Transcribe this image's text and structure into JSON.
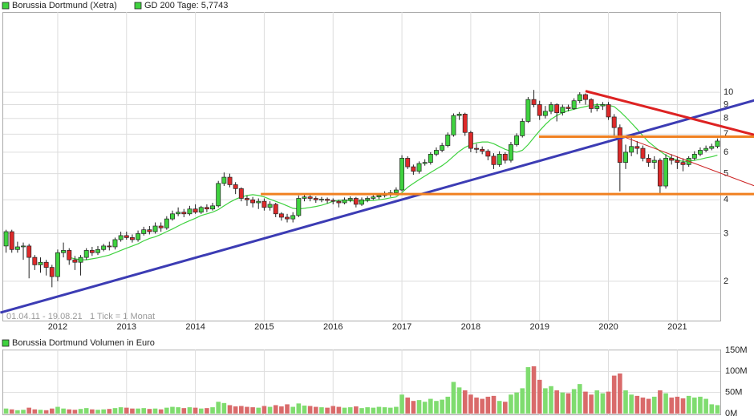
{
  "chart_data": [
    {
      "type": "candlestick",
      "name": "Borussia Dortmund (Xetra)",
      "date_range": "01.04.11 - 19.08.21",
      "tick_note": "1 Tick = 1 Monat",
      "categories": [
        null,
        null,
        null,
        null,
        null,
        null,
        null,
        null,
        null,
        "2012",
        null,
        null,
        null,
        null,
        null,
        null,
        null,
        null,
        null,
        null,
        null,
        "2013",
        null,
        null,
        null,
        null,
        null,
        null,
        null,
        null,
        null,
        null,
        null,
        "2014",
        null,
        null,
        null,
        null,
        null,
        null,
        null,
        null,
        null,
        null,
        null,
        "2015",
        null,
        null,
        null,
        null,
        null,
        null,
        null,
        null,
        null,
        null,
        null,
        "2016",
        null,
        null,
        null,
        null,
        null,
        null,
        null,
        null,
        null,
        null,
        null,
        "2017",
        null,
        null,
        null,
        null,
        null,
        null,
        null,
        null,
        null,
        null,
        null,
        "2018",
        null,
        null,
        null,
        null,
        null,
        null,
        null,
        null,
        null,
        null,
        null,
        "2019",
        null,
        null,
        null,
        null,
        null,
        null,
        null,
        null,
        null,
        null,
        null,
        "2020",
        null,
        null,
        null,
        null,
        null,
        null,
        null,
        null,
        null,
        null,
        null,
        "2021",
        null,
        null,
        null,
        null,
        null,
        null,
        null
      ],
      "open": [
        2.7,
        3.05,
        2.62,
        2.68,
        2.7,
        2.45,
        2.3,
        2.35,
        2.25,
        2.08,
        2.55,
        2.6,
        2.4,
        2.35,
        2.45,
        2.6,
        2.55,
        2.62,
        2.7,
        2.68,
        2.85,
        2.95,
        2.9,
        2.85,
        3.0,
        3.1,
        3.05,
        3.2,
        3.15,
        3.4,
        3.55,
        3.6,
        3.55,
        3.7,
        3.6,
        3.75,
        3.7,
        3.8,
        4.6,
        4.85,
        4.55,
        4.4,
        4.05,
        4.0,
        3.9,
        3.95,
        3.75,
        3.85,
        3.55,
        3.45,
        3.4,
        3.5,
        4.05,
        4.1,
        4.05,
        4.0,
        4.02,
        3.98,
        3.95,
        3.9,
        4.0,
        4.05,
        3.85,
        4.0,
        4.05,
        4.1,
        4.15,
        4.2,
        4.25,
        4.35,
        5.7,
        5.3,
        5.1,
        5.45,
        5.5,
        5.9,
        6.1,
        6.35,
        6.95,
        8.2,
        8.3,
        7.1,
        6.2,
        6.15,
        6.05,
        5.8,
        5.4,
        5.9,
        5.6,
        6.4,
        6.9,
        7.8,
        9.4,
        9.0,
        8.2,
        8.5,
        9.0,
        8.4,
        8.8,
        8.7,
        9.3,
        9.8,
        9.4,
        8.7,
        8.9,
        9.0,
        8.1,
        7.4,
        5.5,
        6.0,
        6.3,
        6.2,
        5.7,
        5.5,
        5.6,
        4.5,
        5.7,
        5.6,
        5.5,
        5.4,
        5.7,
        5.9,
        6.1,
        6.2,
        6.3
      ],
      "high": [
        3.1,
        3.1,
        2.8,
        2.78,
        2.75,
        2.5,
        2.45,
        2.4,
        2.3,
        2.62,
        2.78,
        2.65,
        2.48,
        2.5,
        2.65,
        2.68,
        2.7,
        2.75,
        2.8,
        2.9,
        3.05,
        3.05,
        2.98,
        3.08,
        3.18,
        3.2,
        3.3,
        3.3,
        3.48,
        3.65,
        3.75,
        3.7,
        3.8,
        3.85,
        3.8,
        3.85,
        3.9,
        4.7,
        5.05,
        5.0,
        4.65,
        4.45,
        4.15,
        4.1,
        4.05,
        4.05,
        3.95,
        3.9,
        3.6,
        3.55,
        3.6,
        4.15,
        4.2,
        4.18,
        4.12,
        4.1,
        4.08,
        4.05,
        4.0,
        4.08,
        4.12,
        4.1,
        4.08,
        4.12,
        4.18,
        4.22,
        4.3,
        4.35,
        4.45,
        5.85,
        5.8,
        5.4,
        5.55,
        5.65,
        6.0,
        6.25,
        6.5,
        7.1,
        8.35,
        8.45,
        8.4,
        7.2,
        6.45,
        6.3,
        6.15,
        5.95,
        6.05,
        6.0,
        6.55,
        7.05,
        8.0,
        9.6,
        10.2,
        9.3,
        8.9,
        9.2,
        9.1,
        9.0,
        9.0,
        9.5,
        10.0,
        9.9,
        9.5,
        9.1,
        9.2,
        9.2,
        8.3,
        7.6,
        6.4,
        6.8,
        6.6,
        6.35,
        5.9,
        5.8,
        5.7,
        5.9,
        5.9,
        5.8,
        5.7,
        5.8,
        6.05,
        6.25,
        6.35,
        6.45,
        6.75
      ],
      "low": [
        2.55,
        2.55,
        2.55,
        2.4,
        2.05,
        2.2,
        2.15,
        2.1,
        1.9,
        2.0,
        2.45,
        2.3,
        2.2,
        2.1,
        2.4,
        2.48,
        2.5,
        2.58,
        2.6,
        2.62,
        2.8,
        2.85,
        2.78,
        2.8,
        2.95,
        2.98,
        3.0,
        3.05,
        3.1,
        3.35,
        3.48,
        3.45,
        3.5,
        3.55,
        3.55,
        3.6,
        3.65,
        3.75,
        4.5,
        4.45,
        4.2,
        3.95,
        3.8,
        3.75,
        3.7,
        3.65,
        3.65,
        3.45,
        3.35,
        3.3,
        3.3,
        3.45,
        3.95,
        3.95,
        3.9,
        3.92,
        3.88,
        3.85,
        3.75,
        3.85,
        3.92,
        3.75,
        3.8,
        3.92,
        4.0,
        4.02,
        4.08,
        4.1,
        4.15,
        4.3,
        5.2,
        4.95,
        5.0,
        5.35,
        5.4,
        5.8,
        6.0,
        6.25,
        6.85,
        7.9,
        6.9,
        6.0,
        5.95,
        5.9,
        5.6,
        5.2,
        5.3,
        5.45,
        5.5,
        6.3,
        6.8,
        7.7,
        8.8,
        7.9,
        8.0,
        8.3,
        7.8,
        8.2,
        8.5,
        8.6,
        9.1,
        9.0,
        8.4,
        8.5,
        8.6,
        7.9,
        6.9,
        4.3,
        5.2,
        5.8,
        5.9,
        5.55,
        5.3,
        5.2,
        4.2,
        4.4,
        5.4,
        5.2,
        5.1,
        5.3,
        5.6,
        5.8,
        6.0,
        6.1,
        6.2
      ],
      "close": [
        3.05,
        2.62,
        2.68,
        2.7,
        2.45,
        2.3,
        2.35,
        2.25,
        2.08,
        2.55,
        2.6,
        2.4,
        2.35,
        2.45,
        2.6,
        2.55,
        2.62,
        2.7,
        2.68,
        2.85,
        2.95,
        2.9,
        2.85,
        3.0,
        3.1,
        3.05,
        3.2,
        3.15,
        3.4,
        3.55,
        3.6,
        3.55,
        3.7,
        3.6,
        3.75,
        3.7,
        3.8,
        4.6,
        4.85,
        4.55,
        4.4,
        4.05,
        4.0,
        3.9,
        3.95,
        3.75,
        3.85,
        3.55,
        3.45,
        3.4,
        3.5,
        4.05,
        4.1,
        4.05,
        4.0,
        4.02,
        3.98,
        3.95,
        3.9,
        4.0,
        4.05,
        3.85,
        4.0,
        4.05,
        4.1,
        4.15,
        4.2,
        4.25,
        4.35,
        5.7,
        5.3,
        5.1,
        5.45,
        5.5,
        5.9,
        6.1,
        6.35,
        6.95,
        8.2,
        8.3,
        7.1,
        6.2,
        6.15,
        6.05,
        5.8,
        5.4,
        5.9,
        5.6,
        6.4,
        6.9,
        7.8,
        9.4,
        9.0,
        8.2,
        8.5,
        9.0,
        8.4,
        8.8,
        8.7,
        9.3,
        9.8,
        9.4,
        8.7,
        8.9,
        9.0,
        8.1,
        7.4,
        5.5,
        6.0,
        6.3,
        6.2,
        5.7,
        5.5,
        5.6,
        4.5,
        5.7,
        5.6,
        5.5,
        5.4,
        5.7,
        5.9,
        6.1,
        6.2,
        6.3,
        6.6
      ],
      "up_color": "#3fd23f",
      "down_color": "#dd2a2a",
      "overlay": {
        "name": "GD 200 Tage: 5,7743",
        "color": "#3fd23f",
        "values": [
          null,
          null,
          null,
          null,
          null,
          null,
          null,
          null,
          null,
          null,
          null,
          2.45,
          2.42,
          2.4,
          2.4,
          2.42,
          2.44,
          2.47,
          2.5,
          2.55,
          2.6,
          2.65,
          2.7,
          2.75,
          2.82,
          2.88,
          2.92,
          2.98,
          3.05,
          3.12,
          3.2,
          3.28,
          3.35,
          3.42,
          3.5,
          3.55,
          3.6,
          3.68,
          3.8,
          3.92,
          4.02,
          4.1,
          4.15,
          4.18,
          4.15,
          4.1,
          4.02,
          3.95,
          3.88,
          3.8,
          3.72,
          3.7,
          3.72,
          3.75,
          3.78,
          3.82,
          3.88,
          3.95,
          3.98,
          3.98,
          3.97,
          3.96,
          3.96,
          3.97,
          3.98,
          4.0,
          4.03,
          4.07,
          4.1,
          4.25,
          4.45,
          4.6,
          4.75,
          4.9,
          5.05,
          5.2,
          5.35,
          5.55,
          5.8,
          6.05,
          6.25,
          6.4,
          6.5,
          6.55,
          6.55,
          6.45,
          6.3,
          6.15,
          6.05,
          6.0,
          6.1,
          6.4,
          6.8,
          7.2,
          7.6,
          7.95,
          8.2,
          8.4,
          8.55,
          8.65,
          8.75,
          8.85,
          8.95,
          9.0,
          9.0,
          8.95,
          8.85,
          8.5,
          8.1,
          7.7,
          7.3,
          6.9,
          6.55,
          6.3,
          6.05,
          5.85,
          5.7,
          5.6,
          5.55,
          5.55,
          5.6,
          5.65,
          5.72,
          5.77,
          5.85
        ]
      },
      "trendlines": [
        {
          "color": "#3c3cb4",
          "width": 3,
          "x": [
            -1,
            130.5
          ],
          "y": [
            1.53,
            9.34
          ]
        },
        {
          "color": "#dd2222",
          "width": 3,
          "x": [
            101,
            130.5
          ],
          "y": [
            10.1,
            6.95
          ]
        },
        {
          "color": "#f08020",
          "width": 3,
          "x": [
            44.4,
            130.5
          ],
          "y": [
            4.2,
            4.2
          ]
        },
        {
          "color": "#f08020",
          "width": 3,
          "x": [
            92.9,
            130.5
          ],
          "y": [
            6.85,
            6.85
          ]
        },
        {
          "color": "#cc2222",
          "width": 1,
          "x": [
            108,
            130.5
          ],
          "y": [
            6.8,
            4.5
          ]
        }
      ],
      "log_scale": true,
      "grid": true,
      "ylim": [
        1.43,
        19.8
      ],
      "yticks": [
        2,
        3,
        4,
        5,
        6,
        7,
        8,
        9,
        10
      ]
    },
    {
      "type": "bar",
      "title": "Borussia Dortmund Volumen in Euro",
      "values": [
        12,
        10,
        8,
        9,
        14,
        10,
        9,
        8,
        12,
        16,
        12,
        10,
        9,
        11,
        13,
        10,
        9,
        10,
        11,
        13,
        15,
        14,
        12,
        12,
        13,
        11,
        12,
        10,
        14,
        16,
        15,
        13,
        15,
        14,
        12,
        13,
        15,
        28,
        25,
        20,
        17,
        18,
        16,
        15,
        14,
        18,
        16,
        20,
        17,
        22,
        16,
        24,
        19,
        18,
        16,
        15,
        14,
        18,
        16,
        14,
        15,
        17,
        13,
        15,
        14,
        16,
        15,
        14,
        16,
        45,
        38,
        30,
        32,
        28,
        35,
        30,
        33,
        40,
        75,
        62,
        55,
        45,
        38,
        35,
        40,
        42,
        30,
        28,
        45,
        50,
        60,
        110,
        112,
        80,
        60,
        65,
        55,
        50,
        48,
        58,
        70,
        52,
        45,
        55,
        48,
        52,
        90,
        95,
        55,
        45,
        42,
        38,
        35,
        40,
        55,
        48,
        38,
        40,
        36,
        42,
        38,
        40,
        35,
        22,
        20
      ],
      "up_color": "#7fdc6f",
      "down_color": "#d96a6a",
      "grid": true,
      "ylim": [
        0,
        150
      ],
      "yticks": [
        {
          "value": 0,
          "label": "0M"
        },
        {
          "value": 50,
          "label": "50M"
        },
        {
          "value": 100,
          "label": "100M"
        },
        {
          "value": 150,
          "label": "150M"
        }
      ]
    }
  ]
}
